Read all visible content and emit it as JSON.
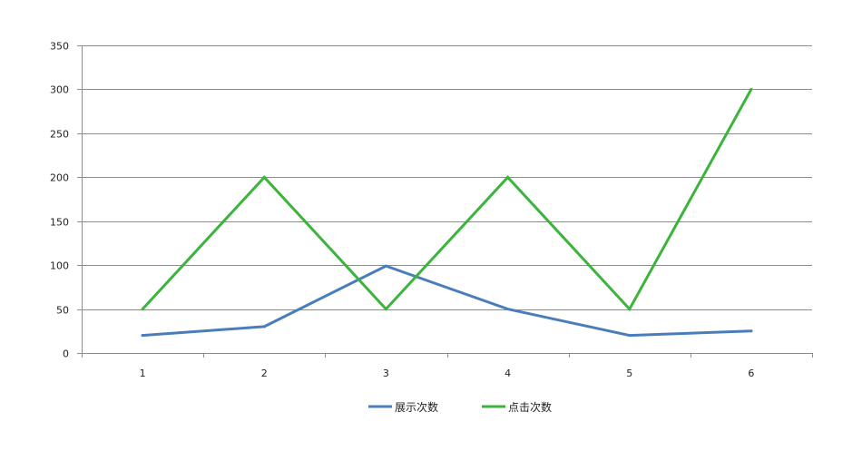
{
  "chart_data": {
    "type": "line",
    "title": "",
    "xlabel": "",
    "ylabel": "",
    "categories": [
      "1",
      "2",
      "3",
      "4",
      "5",
      "6"
    ],
    "ylim": [
      0,
      350
    ],
    "yticks": [
      0,
      50,
      100,
      150,
      200,
      250,
      300,
      350
    ],
    "grid": true,
    "legend_position": "bottom",
    "series": [
      {
        "name": "展示次数",
        "color": "#4a7ebb",
        "values": [
          20,
          30,
          99,
          50,
          20,
          25
        ]
      },
      {
        "name": "点击次数",
        "color": "#3cb43c",
        "values": [
          50,
          200,
          50,
          200,
          50,
          300
        ]
      }
    ]
  }
}
